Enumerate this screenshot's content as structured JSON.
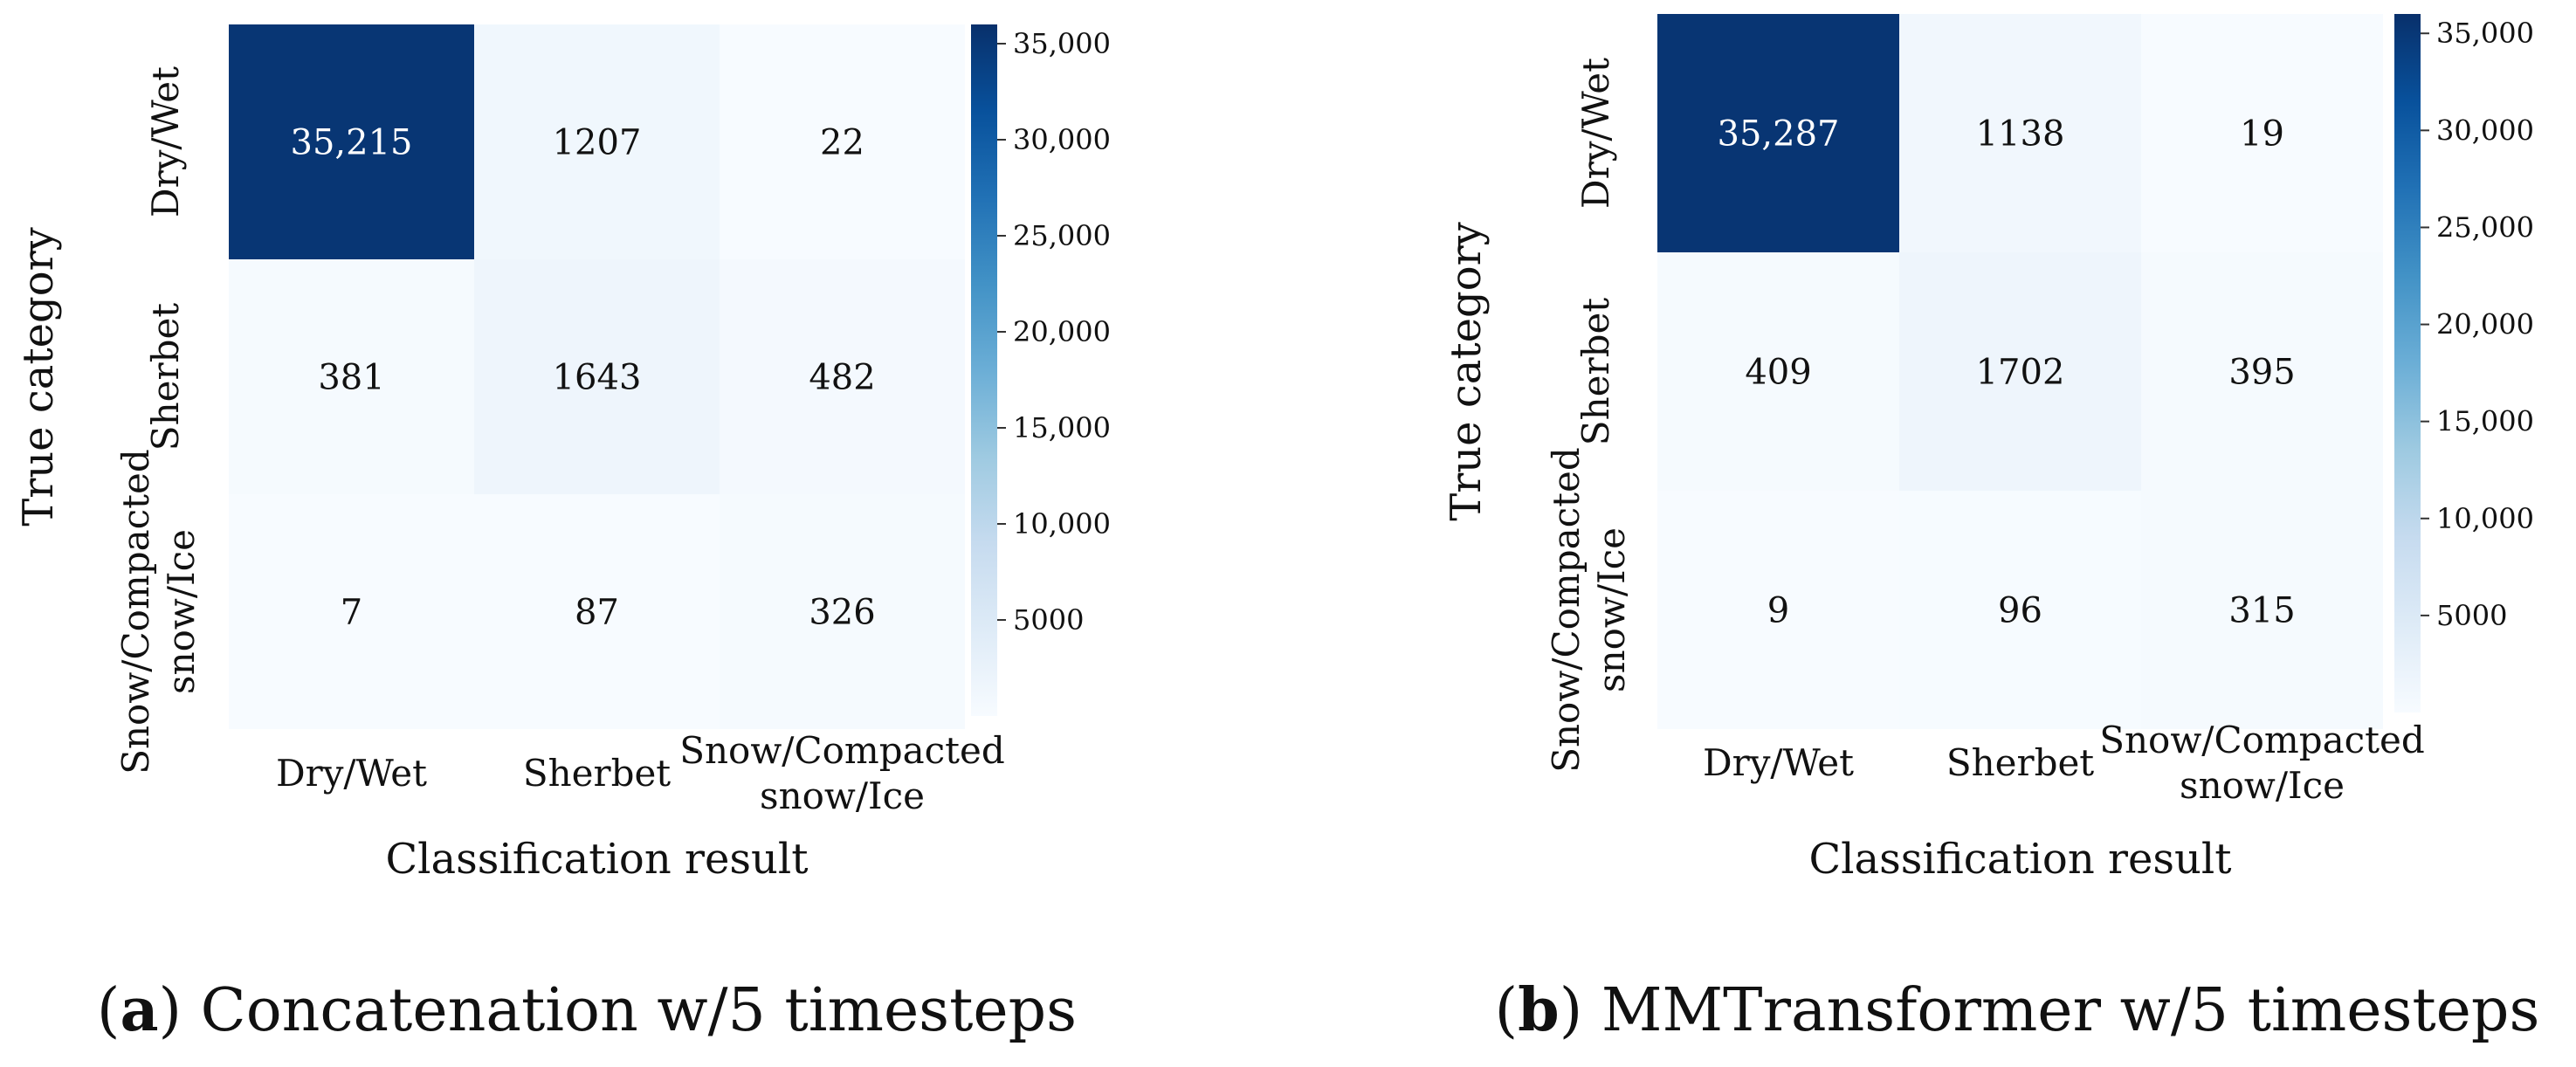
{
  "colors": {
    "scale": [
      "#f7fbff",
      "#deebf7",
      "#c6dbef",
      "#9ecae1",
      "#6baed6",
      "#4292c6",
      "#2171b5",
      "#08519c",
      "#08306b"
    ],
    "text_dark": "#111111",
    "text_light": "#ffffff"
  },
  "chart_data": [
    {
      "type": "heatmap",
      "panel": "a",
      "caption_letter": "a",
      "caption_text": "Concatenation w/5 timesteps",
      "xlabel": "Classification result",
      "ylabel": "True category",
      "x_categories": [
        [
          "Dry/Wet"
        ],
        [
          "Sherbet"
        ],
        [
          "Snow/Compacted",
          "snow/Ice"
        ]
      ],
      "y_categories": [
        [
          "Dry/Wet"
        ],
        [
          "Sherbet"
        ],
        [
          "Snow/Compacted",
          "snow/Ice"
        ]
      ],
      "values": [
        [
          35215,
          1207,
          22
        ],
        [
          381,
          1643,
          482
        ],
        [
          7,
          87,
          326
        ]
      ],
      "value_labels": [
        [
          "35,215",
          "1207",
          "22"
        ],
        [
          "381",
          "1643",
          "482"
        ],
        [
          "7",
          "87",
          "326"
        ]
      ],
      "colorbar": {
        "min": 0,
        "max": 36000,
        "ticks": [
          5000,
          10000,
          15000,
          20000,
          25000,
          30000,
          35000
        ],
        "tick_labels": [
          "5000",
          "10,000",
          "15,000",
          "20,000",
          "25,000",
          "30,000",
          "35,000"
        ]
      }
    },
    {
      "type": "heatmap",
      "panel": "b",
      "caption_letter": "b",
      "caption_text": "MMTransformer w/5 timesteps",
      "xlabel": "Classification result",
      "ylabel": "True category",
      "x_categories": [
        [
          "Dry/Wet"
        ],
        [
          "Sherbet"
        ],
        [
          "Snow/Compacted",
          "snow/Ice"
        ]
      ],
      "y_categories": [
        [
          "Dry/Wet"
        ],
        [
          "Sherbet"
        ],
        [
          "Snow/Compacted",
          "snow/Ice"
        ]
      ],
      "values": [
        [
          35287,
          1138,
          19
        ],
        [
          409,
          1702,
          395
        ],
        [
          9,
          96,
          315
        ]
      ],
      "value_labels": [
        [
          "35,287",
          "1138",
          "19"
        ],
        [
          "409",
          "1702",
          "395"
        ],
        [
          "9",
          "96",
          "315"
        ]
      ],
      "colorbar": {
        "min": 0,
        "max": 36000,
        "ticks": [
          5000,
          10000,
          15000,
          20000,
          25000,
          30000,
          35000
        ],
        "tick_labels": [
          "5000",
          "10,000",
          "15,000",
          "20,000",
          "25,000",
          "30,000",
          "35,000"
        ]
      }
    }
  ]
}
